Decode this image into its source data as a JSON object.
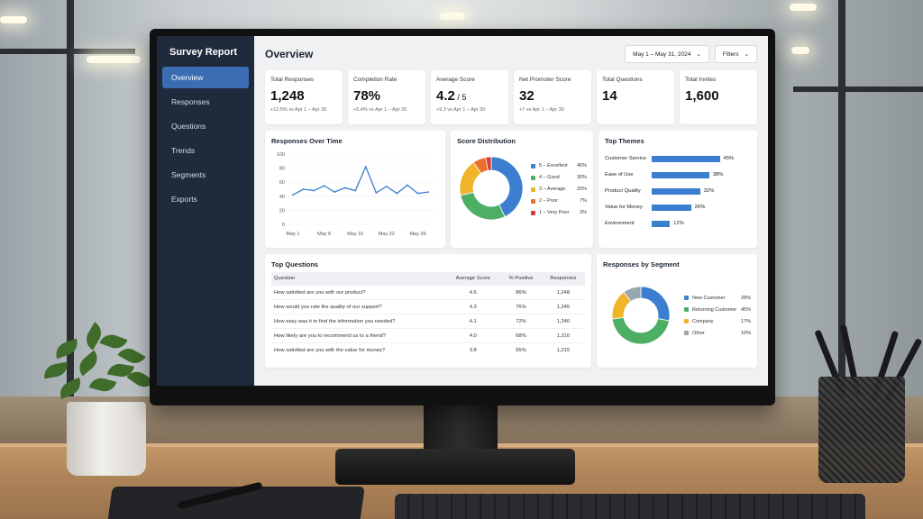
{
  "app": {
    "title": "Survey Report"
  },
  "sidebar": {
    "items": [
      {
        "label": "Overview",
        "active": true
      },
      {
        "label": "Responses"
      },
      {
        "label": "Questions"
      },
      {
        "label": "Trends"
      },
      {
        "label": "Segments"
      },
      {
        "label": "Exports"
      }
    ]
  },
  "header": {
    "title": "Overview",
    "date_range": "May 1 – May 31, 2024",
    "filters_label": "Filters"
  },
  "kpis": [
    {
      "label": "Total Responses",
      "value": "1,248",
      "suffix": "",
      "sub": "+12.5% vs Apr 1 – Apr 30"
    },
    {
      "label": "Completion Rate",
      "value": "78%",
      "suffix": "",
      "sub": "+5.4% vs Apr 1 – Apr 30"
    },
    {
      "label": "Average Score",
      "value": "4.2",
      "suffix": " / 5",
      "sub": "+9.3 vs Apr 1 – Apr 30"
    },
    {
      "label": "Net Promoter Score",
      "value": "32",
      "suffix": "",
      "sub": "+7 vs Apr 1 – Apr 30"
    },
    {
      "label": "Total Questions",
      "value": "14",
      "suffix": "",
      "sub": ""
    },
    {
      "label": "Total Invites",
      "value": "1,600",
      "suffix": "",
      "sub": ""
    }
  ],
  "responses_over_time": {
    "title": "Responses Over Time",
    "chart_data": {
      "type": "line",
      "x": [
        "May 1",
        "May 3",
        "May 5",
        "May 8",
        "May 10",
        "May 12",
        "May 15",
        "May 17",
        "May 19",
        "May 22",
        "May 24",
        "May 26",
        "May 29",
        "May 31"
      ],
      "x_ticks": [
        "May 1",
        "May 8",
        "May 15",
        "May 22",
        "May 29"
      ],
      "y": [
        42,
        50,
        48,
        55,
        46,
        52,
        48,
        82,
        45,
        54,
        44,
        56,
        44,
        46
      ],
      "y_ticks": [
        0,
        20,
        40,
        60,
        80,
        100
      ],
      "ylim": [
        0,
        100
      ],
      "color": "#3b7ed0"
    }
  },
  "score_distribution": {
    "title": "Score Distribution",
    "chart_data": {
      "type": "pie",
      "categories": [
        "5 – Excellent",
        "4 – Good",
        "3 – Average",
        "2 – Poor",
        "1 – Very Poor"
      ],
      "values": [
        45,
        30,
        20,
        7,
        3
      ],
      "labels": [
        "45%",
        "30%",
        "20%",
        "7%",
        "3%"
      ],
      "colors": [
        "#3b7ed0",
        "#4caf63",
        "#f0b429",
        "#e8702a",
        "#d63a3a"
      ]
    }
  },
  "top_themes": {
    "title": "Top Themes",
    "chart_data": {
      "type": "bar",
      "categories": [
        "Customer Service",
        "Ease of Use",
        "Product Quality",
        "Value for Money",
        "Environment"
      ],
      "values": [
        45,
        38,
        32,
        26,
        12
      ],
      "labels": [
        "45%",
        "38%",
        "32%",
        "26%",
        "12%"
      ],
      "color": "#3b7ed0"
    }
  },
  "top_questions": {
    "title": "Top Questions",
    "columns": [
      "Question",
      "Average Score",
      "% Positive",
      "Responses"
    ],
    "rows": [
      [
        "How satisfied are you with our product?",
        "4.6",
        "86%",
        "1,248"
      ],
      [
        "How would you rate the quality of our support?",
        "4.3",
        "76%",
        "1,245"
      ],
      [
        "How easy was it to find the information you needed?",
        "4.1",
        "72%",
        "1,240"
      ],
      [
        "How likely are you to recommend us to a friend?",
        "4.0",
        "68%",
        "1,210"
      ],
      [
        "How satisfied are you with the value for money?",
        "3.8",
        "65%",
        "1,215"
      ]
    ]
  },
  "responses_by_segment": {
    "title": "Responses by Segment",
    "chart_data": {
      "type": "pie",
      "categories": [
        "New Customer",
        "Returning Customer",
        "Company",
        "Other"
      ],
      "values": [
        28,
        45,
        17,
        10
      ],
      "labels": [
        "28%",
        "45%",
        "17%",
        "10%"
      ],
      "colors": [
        "#3b7ed0",
        "#4caf63",
        "#f0b429",
        "#9aa6b2"
      ]
    }
  }
}
